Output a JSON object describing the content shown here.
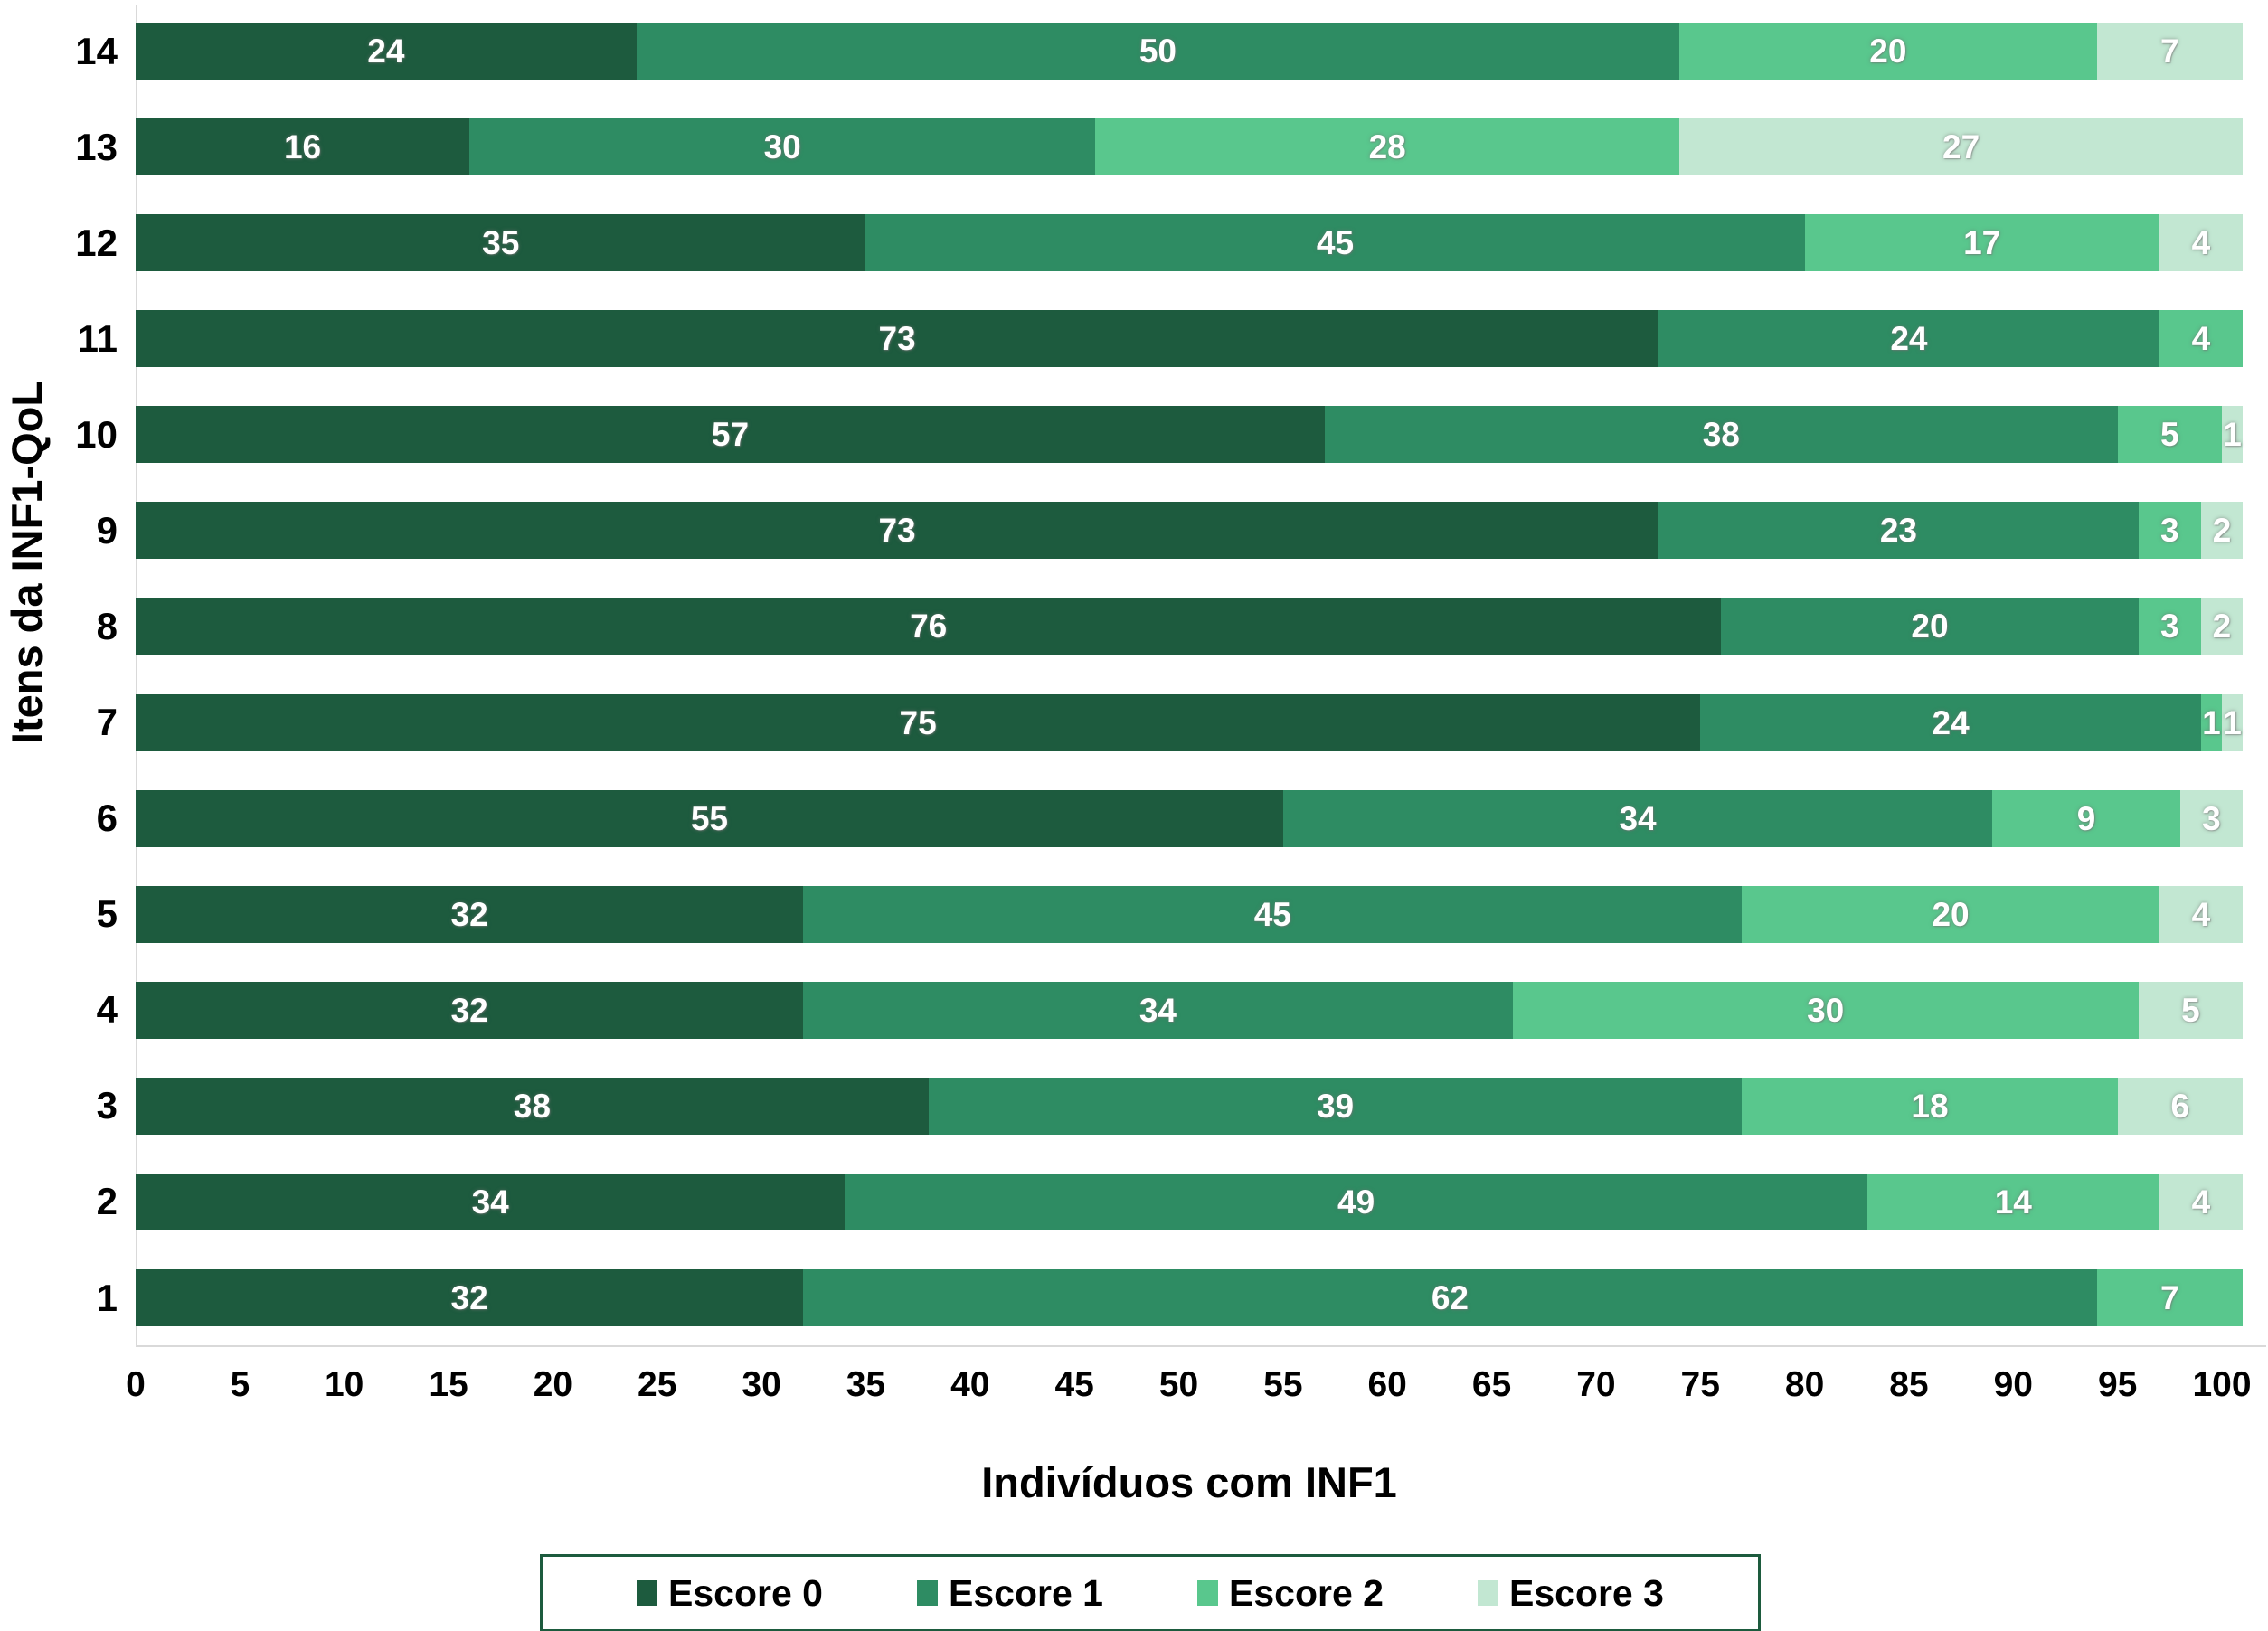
{
  "chart_data": {
    "type": "bar",
    "orientation": "horizontal",
    "stacked": true,
    "title": "",
    "xlabel": "Indivíduos com INF1",
    "ylabel": "Itens da INF1-QoL",
    "xlim": [
      0,
      100
    ],
    "x_ticks": [
      0,
      5,
      10,
      15,
      20,
      25,
      30,
      35,
      40,
      45,
      50,
      55,
      60,
      65,
      70,
      75,
      80,
      85,
      90,
      95,
      100
    ],
    "grid": false,
    "legend_position": "bottom",
    "categories": [
      "14",
      "13",
      "12",
      "11",
      "10",
      "9",
      "8",
      "7",
      "6",
      "5",
      "4",
      "3",
      "2",
      "1"
    ],
    "series": [
      {
        "name": "Escore 0",
        "color": "#1d5b3e",
        "values": [
          24,
          16,
          35,
          73,
          57,
          73,
          76,
          75,
          55,
          32,
          32,
          38,
          34,
          32
        ]
      },
      {
        "name": "Escore 1",
        "color": "#2e8c63",
        "values": [
          50,
          30,
          45,
          24,
          38,
          23,
          20,
          24,
          34,
          45,
          34,
          39,
          49,
          62
        ]
      },
      {
        "name": "Escore 2",
        "color": "#59c78d",
        "values": [
          20,
          28,
          17,
          4,
          5,
          3,
          3,
          1,
          9,
          20,
          30,
          18,
          14,
          7
        ]
      },
      {
        "name": "Escore 3",
        "color": "#c2e7d2",
        "values": [
          7,
          27,
          4,
          0,
          1,
          2,
          2,
          1,
          3,
          4,
          5,
          6,
          4,
          0
        ]
      }
    ]
  }
}
